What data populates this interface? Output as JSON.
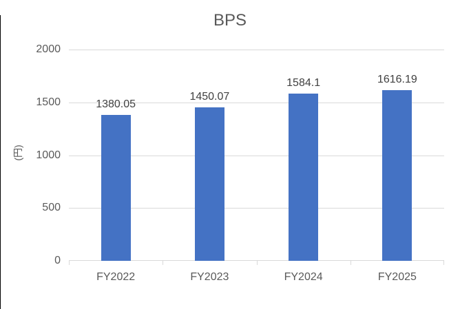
{
  "chart_data": {
    "type": "bar",
    "title": "BPS",
    "categories": [
      "FY2022",
      "FY2023",
      "FY2024",
      "FY2025"
    ],
    "values": [
      1380.05,
      1450.07,
      1584.1,
      1616.19
    ],
    "data_labels": [
      "1380.05",
      "1450.07",
      "1584.1",
      "1616.19"
    ],
    "xlabel": "",
    "ylabel": "(円)",
    "ylim": [
      0,
      2000
    ],
    "yticks": [
      0,
      500,
      1000,
      1500,
      2000
    ],
    "ytick_labels": [
      "0",
      "500",
      "1000",
      "1500",
      "2000"
    ],
    "grid": true,
    "legend": "none",
    "bar_color": "#4472C4",
    "gridline_color": "#D9D9D9",
    "axis_line_color": "#D9D9D9",
    "title_color": "#595959",
    "tick_label_color": "#595959",
    "axis_title_color": "#595959",
    "data_label_color": "#404040"
  }
}
